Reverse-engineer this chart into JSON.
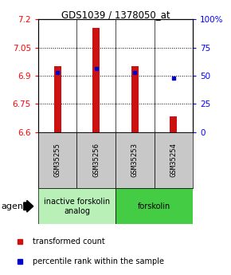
{
  "title": "GDS1039 / 1378050_at",
  "samples": [
    "GSM35255",
    "GSM35256",
    "GSM35253",
    "GSM35254"
  ],
  "bar_values": [
    6.95,
    7.155,
    6.95,
    6.685
  ],
  "bar_bottom": 6.6,
  "blue_dot_values": [
    6.918,
    6.938,
    6.918,
    6.885
  ],
  "ylim": [
    6.6,
    7.2
  ],
  "yticks_left": [
    6.6,
    6.75,
    6.9,
    7.05,
    7.2
  ],
  "yticks_right": [
    0,
    25,
    50,
    75,
    100
  ],
  "groups": [
    {
      "label": "inactive forskolin\nanalog",
      "indices": [
        0,
        1
      ],
      "color": "#b8f0b8"
    },
    {
      "label": "forskolin",
      "indices": [
        2,
        3
      ],
      "color": "#44cc44"
    }
  ],
  "bar_color": "#cc1111",
  "dot_color": "#0000cc",
  "legend_labels": [
    "transformed count",
    "percentile rank within the sample"
  ],
  "agent_label": "agent",
  "sample_box_color": "#c8c8c8",
  "bar_width": 0.18
}
